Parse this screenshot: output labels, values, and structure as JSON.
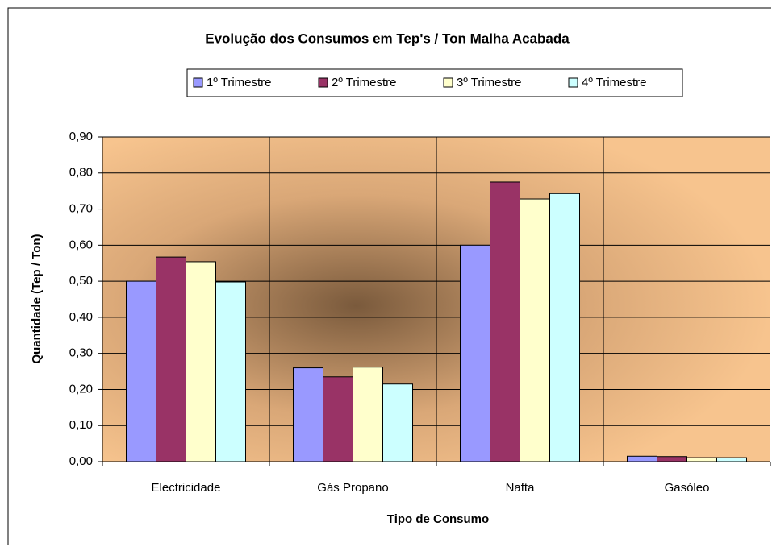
{
  "chart_data": {
    "type": "bar",
    "title": "Evolução dos Consumos em Tep's / Ton Malha Acabada",
    "x_label": "Tipo de Consumo",
    "y_label": "Quantidade (Tep / Ton)",
    "categories": [
      "Electricidade",
      "Gás Propano",
      "Nafta",
      "Gasóleo"
    ],
    "series": [
      {
        "name": "1º Trimestre",
        "color": "#9999ff",
        "values": [
          0.5,
          0.26,
          0.6,
          0.015
        ]
      },
      {
        "name": "2º Trimestre",
        "color": "#993366",
        "values": [
          0.567,
          0.235,
          0.775,
          0.014
        ]
      },
      {
        "name": "3º Trimestre",
        "color": "#ffffcc",
        "values": [
          0.554,
          0.262,
          0.728,
          0.011
        ]
      },
      {
        "name": "4º Trimestre",
        "color": "#ccffff",
        "values": [
          0.498,
          0.215,
          0.743,
          0.011
        ]
      }
    ],
    "ylim": [
      0,
      0.9
    ],
    "yticks": [
      {
        "value": 0,
        "label": "0,00"
      },
      {
        "value": 0.1,
        "label": "0,10"
      },
      {
        "value": 0.2,
        "label": "0,20"
      },
      {
        "value": 0.3,
        "label": "0,30"
      },
      {
        "value": 0.4,
        "label": "0,40"
      },
      {
        "value": 0.5,
        "label": "0,50"
      },
      {
        "value": 0.6,
        "label": "0,60"
      },
      {
        "value": 0.7,
        "label": "0,70"
      },
      {
        "value": 0.8,
        "label": "0,80"
      },
      {
        "value": 0.9,
        "label": "0,90"
      }
    ],
    "grid": true,
    "legend": "top"
  }
}
